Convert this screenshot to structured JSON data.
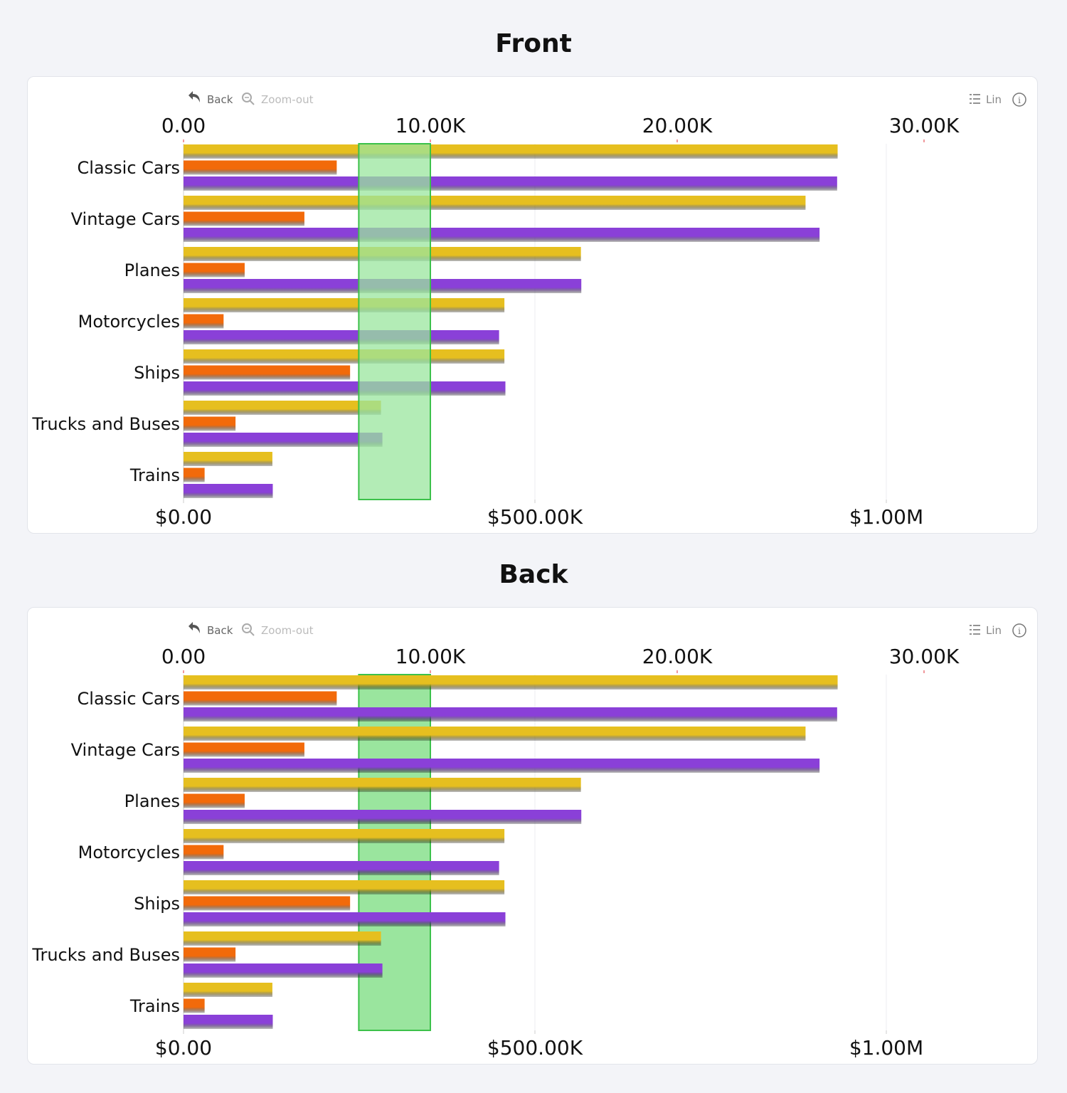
{
  "charts": [
    {
      "title": "Front",
      "toolbar": {
        "back_label": "Back",
        "zoom_out_label": "Zoom-out",
        "scale_label": "Lin"
      },
      "highlight_in_front": true
    },
    {
      "title": "Back",
      "toolbar": {
        "back_label": "Back",
        "zoom_out_label": "Zoom-out",
        "scale_label": "Lin"
      },
      "highlight_in_front": false
    }
  ],
  "colors": {
    "series_gold": "#e6bf1f",
    "series_orange": "#f26a0a",
    "series_purple": "#8a40d8",
    "highlight_fill": "#9ae59e",
    "highlight_stroke": "#3cc14a"
  },
  "chart_data": [
    {
      "type": "bar",
      "orientation": "horizontal",
      "title": "Front",
      "categories": [
        "Classic Cars",
        "Vintage Cars",
        "Planes",
        "Motorcycles",
        "Ships",
        "Trucks and Buses",
        "Trains"
      ],
      "series": [
        {
          "color": "#e6bf1f",
          "axis": "top",
          "values": [
            26500,
            25200,
            16100,
            13000,
            13000,
            8000,
            3600
          ]
        },
        {
          "color": "#f26a0a",
          "axis": "bottom",
          "values": [
            218000,
            172000,
            87000,
            57000,
            237000,
            74000,
            30000
          ]
        },
        {
          "color": "#8a40d8",
          "axis": "bottom",
          "values": [
            930000,
            905000,
            566000,
            449000,
            458000,
            283000,
            127000
          ]
        }
      ],
      "top_axis": {
        "ticks": [
          0,
          10000,
          20000,
          30000
        ],
        "tick_labels": [
          "0.00",
          "10.00K",
          "20.00K",
          "30.00K"
        ],
        "range": [
          0,
          33300
        ]
      },
      "bottom_axis": {
        "ticks": [
          0,
          500000,
          1000000
        ],
        "tick_labels": [
          "$0.00",
          "$500.00K",
          "$1.00M"
        ],
        "range": [
          0,
          1175000
        ]
      },
      "highlight_band": {
        "axis": "top",
        "from": 7100,
        "to": 10000
      },
      "grid": true
    },
    {
      "type": "bar",
      "orientation": "horizontal",
      "title": "Back",
      "categories": [
        "Classic Cars",
        "Vintage Cars",
        "Planes",
        "Motorcycles",
        "Ships",
        "Trucks and Buses",
        "Trains"
      ],
      "series": [
        {
          "color": "#e6bf1f",
          "axis": "top",
          "values": [
            26500,
            25200,
            16100,
            13000,
            13000,
            8000,
            3600
          ]
        },
        {
          "color": "#f26a0a",
          "axis": "bottom",
          "values": [
            218000,
            172000,
            87000,
            57000,
            237000,
            74000,
            30000
          ]
        },
        {
          "color": "#8a40d8",
          "axis": "bottom",
          "values": [
            930000,
            905000,
            566000,
            449000,
            458000,
            283000,
            127000
          ]
        }
      ],
      "top_axis": {
        "ticks": [
          0,
          10000,
          20000,
          30000
        ],
        "tick_labels": [
          "0.00",
          "10.00K",
          "20.00K",
          "30.00K"
        ],
        "range": [
          0,
          33300
        ]
      },
      "bottom_axis": {
        "ticks": [
          0,
          500000,
          1000000
        ],
        "tick_labels": [
          "$0.00",
          "$500.00K",
          "$1.00M"
        ],
        "range": [
          0,
          1175000
        ]
      },
      "highlight_band": {
        "axis": "top",
        "from": 7100,
        "to": 10000
      },
      "grid": true
    }
  ]
}
